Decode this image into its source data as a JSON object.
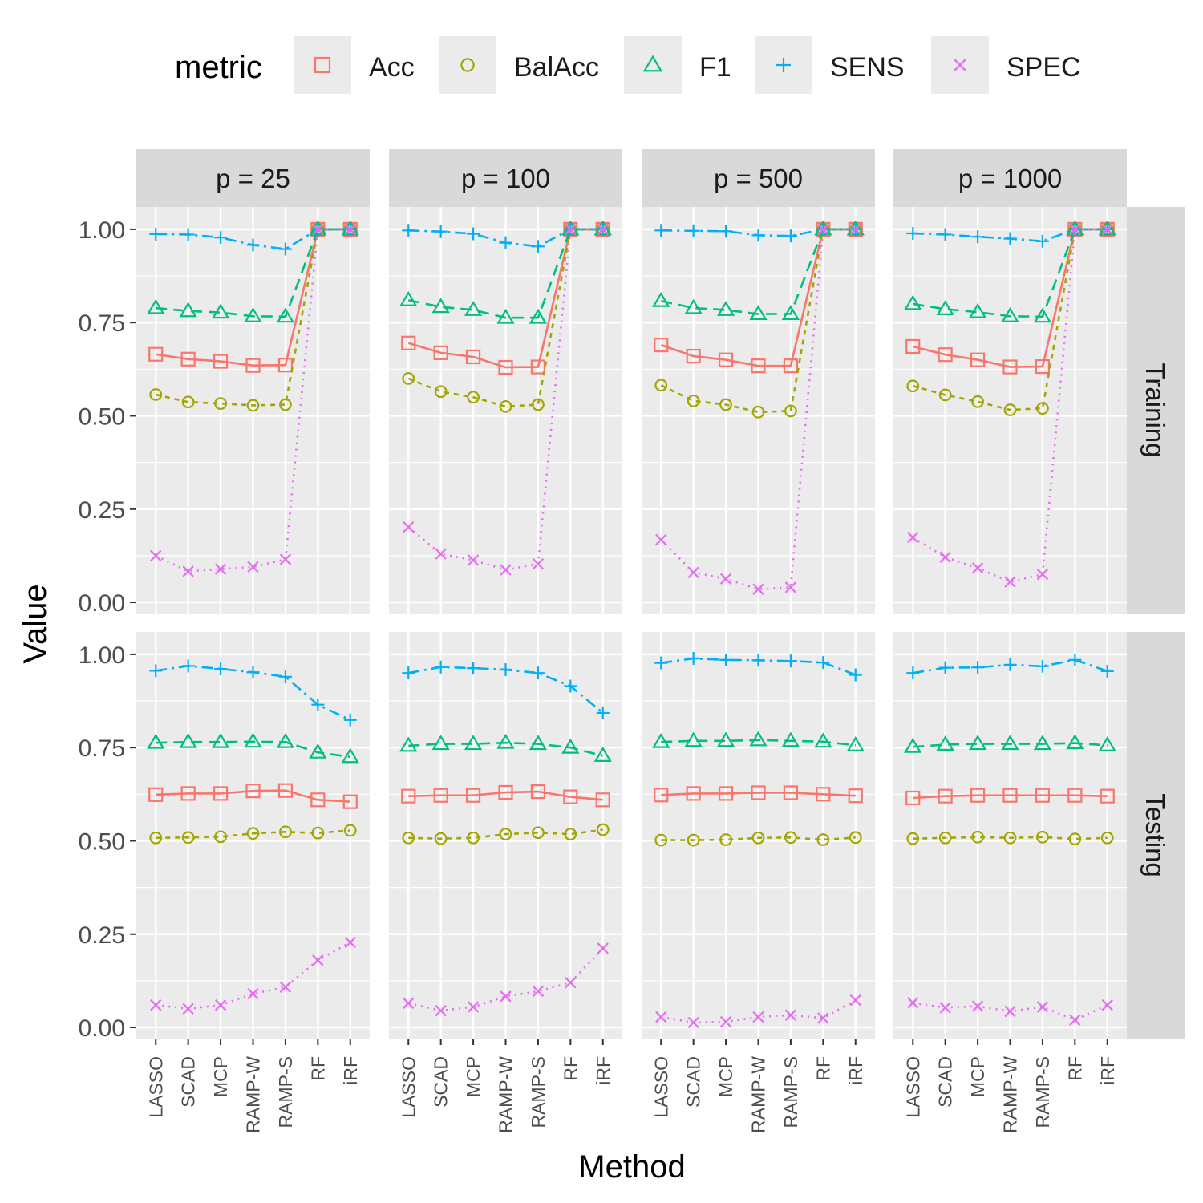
{
  "chart_data": {
    "type": "line",
    "facet_columns": [
      "p = 25",
      "p = 100",
      "p = 500",
      "p = 1000"
    ],
    "facet_rows": [
      "Training",
      "Testing"
    ],
    "categories": [
      "LASSO",
      "SCAD",
      "MCP",
      "RAMP-W",
      "RAMP-S",
      "RF",
      "iRF"
    ],
    "xlabel": "Method",
    "ylabel": "Value",
    "ylim": [
      -0.03,
      1.06
    ],
    "yticks": [
      "0.00",
      "0.25",
      "0.50",
      "0.75",
      "1.00"
    ],
    "grid": true,
    "legend": {
      "title": "metric",
      "position": "top",
      "entries": [
        {
          "name": "Acc",
          "color": "#F8766D",
          "shape": "square",
          "line": "solid"
        },
        {
          "name": "BalAcc",
          "color": "#A3A500",
          "shape": "circle",
          "line": "dashed-short"
        },
        {
          "name": "F1",
          "color": "#00BF7D",
          "shape": "triangle",
          "line": "dashed-long"
        },
        {
          "name": "SENS",
          "color": "#00B0F6",
          "shape": "plus",
          "line": "dashdot"
        },
        {
          "name": "SPEC",
          "color": "#E76BF3",
          "shape": "cross",
          "line": "dotted"
        }
      ]
    },
    "panels": [
      {
        "row": "Training",
        "col": "p = 25",
        "series": {
          "Acc": [
            0.665,
            0.652,
            0.646,
            0.635,
            0.636,
            1.0,
            1.0
          ],
          "BalAcc": [
            0.557,
            0.537,
            0.533,
            0.528,
            0.53,
            1.0,
            1.0
          ],
          "F1": [
            0.789,
            0.781,
            0.777,
            0.767,
            0.766,
            1.0,
            1.0
          ],
          "SENS": [
            0.987,
            0.986,
            0.978,
            0.958,
            0.947,
            1.0,
            1.0
          ],
          "SPEC": [
            0.125,
            0.083,
            0.089,
            0.095,
            0.115,
            1.0,
            1.0
          ]
        }
      },
      {
        "row": "Training",
        "col": "p = 100",
        "series": {
          "Acc": [
            0.695,
            0.669,
            0.658,
            0.63,
            0.631,
            1.0,
            1.0
          ],
          "BalAcc": [
            0.6,
            0.565,
            0.55,
            0.525,
            0.53,
            1.0,
            1.0
          ],
          "F1": [
            0.81,
            0.792,
            0.784,
            0.763,
            0.763,
            1.0,
            1.0
          ],
          "SENS": [
            0.997,
            0.994,
            0.988,
            0.964,
            0.954,
            1.0,
            1.0
          ],
          "SPEC": [
            0.202,
            0.13,
            0.113,
            0.087,
            0.103,
            1.0,
            1.0
          ]
        }
      },
      {
        "row": "Training",
        "col": "p = 500",
        "series": {
          "Acc": [
            0.69,
            0.66,
            0.65,
            0.634,
            0.634,
            1.0,
            1.0
          ],
          "BalAcc": [
            0.582,
            0.54,
            0.53,
            0.51,
            0.513,
            1.0,
            1.0
          ],
          "F1": [
            0.808,
            0.789,
            0.784,
            0.773,
            0.773,
            1.0,
            1.0
          ],
          "SENS": [
            0.997,
            0.996,
            0.995,
            0.984,
            0.982,
            1.0,
            1.0
          ],
          "SPEC": [
            0.168,
            0.08,
            0.063,
            0.035,
            0.04,
            1.0,
            1.0
          ]
        }
      },
      {
        "row": "Training",
        "col": "p = 1000",
        "series": {
          "Acc": [
            0.686,
            0.664,
            0.65,
            0.631,
            0.632,
            1.0,
            1.0
          ],
          "BalAcc": [
            0.58,
            0.556,
            0.538,
            0.516,
            0.52,
            1.0,
            1.0
          ],
          "F1": [
            0.8,
            0.786,
            0.778,
            0.767,
            0.766,
            1.0,
            1.0
          ],
          "SENS": [
            0.989,
            0.986,
            0.98,
            0.975,
            0.968,
            1.0,
            1.0
          ],
          "SPEC": [
            0.174,
            0.121,
            0.092,
            0.055,
            0.075,
            1.0,
            1.0
          ]
        }
      },
      {
        "row": "Testing",
        "col": "p = 25",
        "series": {
          "Acc": [
            0.624,
            0.627,
            0.627,
            0.634,
            0.635,
            0.61,
            0.605
          ],
          "BalAcc": [
            0.508,
            0.509,
            0.511,
            0.52,
            0.524,
            0.521,
            0.528
          ],
          "F1": [
            0.763,
            0.765,
            0.765,
            0.766,
            0.765,
            0.737,
            0.725
          ],
          "SENS": [
            0.956,
            0.969,
            0.961,
            0.952,
            0.94,
            0.865,
            0.824
          ],
          "SPEC": [
            0.06,
            0.05,
            0.06,
            0.09,
            0.108,
            0.18,
            0.228
          ]
        }
      },
      {
        "row": "Testing",
        "col": "p = 100",
        "series": {
          "Acc": [
            0.62,
            0.622,
            0.622,
            0.63,
            0.632,
            0.618,
            0.61
          ],
          "BalAcc": [
            0.508,
            0.506,
            0.508,
            0.518,
            0.522,
            0.518,
            0.53
          ],
          "F1": [
            0.755,
            0.76,
            0.76,
            0.763,
            0.76,
            0.75,
            0.728
          ],
          "SENS": [
            0.95,
            0.966,
            0.963,
            0.959,
            0.95,
            0.915,
            0.843
          ],
          "SPEC": [
            0.065,
            0.045,
            0.055,
            0.083,
            0.097,
            0.12,
            0.212
          ]
        }
      },
      {
        "row": "Testing",
        "col": "p = 500",
        "series": {
          "Acc": [
            0.623,
            0.627,
            0.627,
            0.629,
            0.629,
            0.625,
            0.621
          ],
          "BalAcc": [
            0.502,
            0.502,
            0.503,
            0.508,
            0.509,
            0.503,
            0.509
          ],
          "F1": [
            0.765,
            0.768,
            0.768,
            0.77,
            0.768,
            0.766,
            0.756
          ],
          "SENS": [
            0.977,
            0.989,
            0.985,
            0.984,
            0.982,
            0.978,
            0.945
          ],
          "SPEC": [
            0.028,
            0.013,
            0.015,
            0.028,
            0.033,
            0.025,
            0.073
          ]
        }
      },
      {
        "row": "Testing",
        "col": "p = 1000",
        "series": {
          "Acc": [
            0.615,
            0.62,
            0.622,
            0.622,
            0.622,
            0.622,
            0.62
          ],
          "BalAcc": [
            0.506,
            0.508,
            0.51,
            0.508,
            0.51,
            0.505,
            0.508
          ],
          "F1": [
            0.752,
            0.758,
            0.76,
            0.76,
            0.76,
            0.762,
            0.756
          ],
          "SENS": [
            0.95,
            0.964,
            0.965,
            0.972,
            0.968,
            0.985,
            0.955
          ],
          "SPEC": [
            0.066,
            0.053,
            0.057,
            0.043,
            0.055,
            0.02,
            0.06
          ]
        }
      }
    ]
  }
}
